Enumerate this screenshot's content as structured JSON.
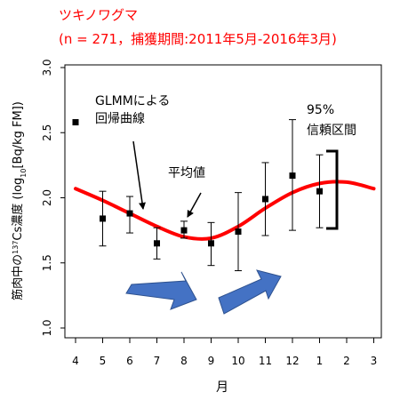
{
  "title_line1": "ツキノワグマ",
  "title_line2": "(n = 271，捕獲期間:2011年5月-2016年3月)",
  "colors": {
    "title": "#ff0000",
    "curve": "#ff0000",
    "arrow_fill": "#4472c4",
    "arrow_stroke": "#2f528f",
    "points": "#000000"
  },
  "chart_data": {
    "type": "line",
    "xlabel": "月",
    "ylabel_parts": [
      "筋肉中の",
      "137",
      "Cs濃度 (log",
      "10",
      "[Bq/kg FM])"
    ],
    "categories": [
      "4",
      "5",
      "6",
      "7",
      "8",
      "9",
      "10",
      "11",
      "12",
      "1",
      "2",
      "3"
    ],
    "ylim": [
      1.0,
      3.0
    ],
    "yticks": [
      "1.0",
      "1.5",
      "2.0",
      "2.5",
      "3.0"
    ],
    "series": [
      {
        "type": "line",
        "values": [
          2.07,
          1.98,
          1.88,
          1.78,
          1.7,
          1.69,
          1.78,
          1.92,
          2.04,
          2.11,
          2.12,
          2.07
        ]
      },
      {
        "type": "errorbar",
        "points": [
          {
            "x": "5",
            "y": 1.84,
            "low": 1.63,
            "high": 2.05
          },
          {
            "x": "6",
            "y": 1.88,
            "low": 1.73,
            "high": 2.01
          },
          {
            "x": "7",
            "y": 1.65,
            "low": 1.53,
            "high": 1.77
          },
          {
            "x": "8",
            "y": 1.75,
            "low": 1.69,
            "high": 1.82
          },
          {
            "x": "9",
            "y": 1.65,
            "low": 1.48,
            "high": 1.81
          },
          {
            "x": "10",
            "y": 1.74,
            "low": 1.44,
            "high": 2.04
          },
          {
            "x": "11",
            "y": 1.99,
            "low": 1.71,
            "high": 2.27
          },
          {
            "x": "12",
            "y": 2.17,
            "low": 1.75,
            "high": 2.6
          },
          {
            "x": "1",
            "y": 2.05,
            "low": 1.77,
            "high": 2.33
          }
        ]
      }
    ],
    "legend_point_y": 2.58,
    "annotations": {
      "glmm_line1": "GLMMによる",
      "glmm_line2": "回帰曲線",
      "mean": "平均値",
      "ci_line1": "95%",
      "ci_line2": "信頼区間"
    }
  }
}
